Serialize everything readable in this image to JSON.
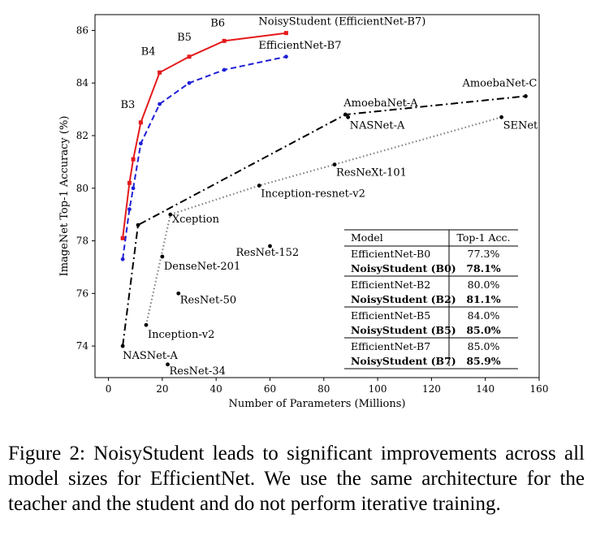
{
  "chart_data": {
    "type": "line",
    "xlabel": "Number of Parameters (Millions)",
    "ylabel": "ImageNet Top-1 Accuracy (%)",
    "xlim": [
      -5,
      160
    ],
    "ylim": [
      72.8,
      86.6
    ],
    "xticks": [
      0,
      20,
      40,
      60,
      80,
      100,
      120,
      140,
      160
    ],
    "yticks": [
      74,
      76,
      78,
      80,
      82,
      84,
      86
    ],
    "grid": false,
    "series": [
      {
        "name": "NoisyStudent (EfficientNet-B7)",
        "color": "#e41a1c",
        "style": "solid",
        "marker": "square",
        "x": [
          5.3,
          7.8,
          9.2,
          12,
          19,
          30,
          43,
          66
        ],
        "y": [
          78.1,
          80.2,
          81.1,
          82.5,
          84.4,
          85.0,
          85.6,
          85.9
        ],
        "point_labels": [
          "",
          "",
          "",
          "B3",
          "B4",
          "B5",
          "B6",
          ""
        ]
      },
      {
        "name": "EfficientNet-B7",
        "color": "#1f1fd6",
        "style": "dashed",
        "marker": "circle",
        "x": [
          5.3,
          7.8,
          9.2,
          12,
          19,
          30,
          43,
          66
        ],
        "y": [
          77.3,
          79.2,
          80.0,
          81.7,
          83.2,
          84.0,
          84.5,
          85.0
        ]
      },
      {
        "name": "",
        "color": "#000000",
        "style": "dashdot",
        "marker": "circle",
        "x": [
          5.3,
          11,
          88,
          155
        ],
        "y": [
          74.0,
          78.6,
          82.8,
          83.5
        ],
        "point_labels": [
          "NASNet-A",
          "",
          "AmoebaNet-A",
          "AmoebaNet-C"
        ]
      },
      {
        "name": "",
        "color": "#808080",
        "style": "dotted",
        "marker": "circle",
        "x": [
          14,
          23,
          56,
          84,
          146
        ],
        "y": [
          74.8,
          79.0,
          80.1,
          80.9,
          82.7
        ],
        "point_labels": [
          "Inception-v2",
          "Xception",
          "Inception-resnet-v2",
          "ResNeXt-101",
          "SENet"
        ]
      },
      {
        "name": "",
        "color": "#000000",
        "style": "none",
        "marker": "circle",
        "x": [
          20,
          26,
          22,
          60,
          89
        ],
        "y": [
          77.4,
          76.0,
          73.3,
          77.8,
          82.7
        ],
        "point_labels": [
          "DenseNet-201",
          "ResNet-50",
          "ResNet-34",
          "ResNet-152",
          "NASNet-A"
        ]
      }
    ],
    "table": {
      "headers": [
        "Model",
        "Top-1 Acc."
      ],
      "rows": [
        {
          "model": "EfficientNet-B0",
          "acc": "77.3%",
          "bold": false
        },
        {
          "model": "NoisyStudent (B0)",
          "acc": "78.1%",
          "bold": true
        },
        {
          "model": "EfficientNet-B2",
          "acc": "80.0%",
          "bold": false
        },
        {
          "model": "NoisyStudent (B2)",
          "acc": "81.1%",
          "bold": true
        },
        {
          "model": "EfficientNet-B5",
          "acc": "84.0%",
          "bold": false
        },
        {
          "model": "NoisyStudent (B5)",
          "acc": "85.0%",
          "bold": true
        },
        {
          "model": "EfficientNet-B7",
          "acc": "85.0%",
          "bold": false
        },
        {
          "model": "NoisyStudent (B7)",
          "acc": "85.9%",
          "bold": true
        }
      ]
    }
  },
  "caption": "Figure 2: NoisyStudent leads to significant improvements across all model sizes for EfficientNet. We use the same architecture for the teacher and the student and do not perform iterative training."
}
